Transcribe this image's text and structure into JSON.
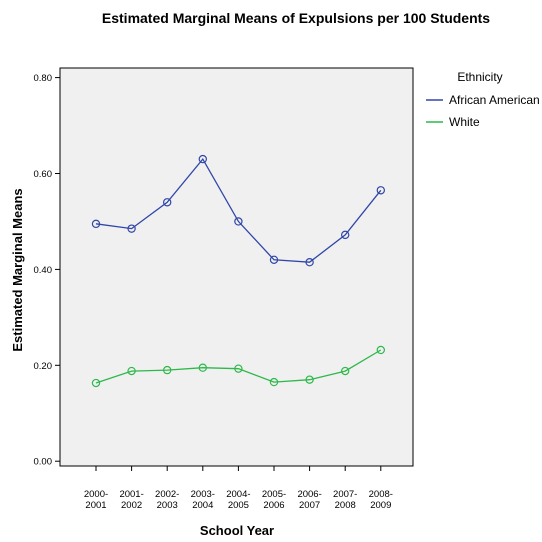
{
  "chart_data": {
    "type": "line",
    "title": "Estimated Marginal Means of Expulsions per 100 Students",
    "xlabel": "School Year",
    "ylabel": "Estimated Marginal Means",
    "categories": [
      [
        "2000-",
        "2001"
      ],
      [
        "2001-",
        "2002"
      ],
      [
        "2002-",
        "2003"
      ],
      [
        "2003-",
        "2004"
      ],
      [
        "2004-",
        "2005"
      ],
      [
        "2005-",
        "2006"
      ],
      [
        "2006-",
        "2007"
      ],
      [
        "2007-",
        "2008"
      ],
      [
        "2008-",
        "2009"
      ]
    ],
    "ylim": [
      -0.01,
      0.82
    ],
    "yticks": [
      {
        "value": 0.0,
        "label": "0.00"
      },
      {
        "value": 0.2,
        "label": "0.20"
      },
      {
        "value": 0.4,
        "label": "0.40"
      },
      {
        "value": 0.6,
        "label": "0.60"
      },
      {
        "value": 0.8,
        "label": "0.80"
      }
    ],
    "grid": false,
    "legend": {
      "title": "Ethnicity",
      "position": "right"
    },
    "series": [
      {
        "name": "African American",
        "color": "#3046a8",
        "values": [
          0.495,
          0.485,
          0.54,
          0.63,
          0.5,
          0.42,
          0.415,
          0.472,
          0.565
        ]
      },
      {
        "name": "White",
        "color": "#2db84a",
        "values": [
          0.163,
          0.188,
          0.19,
          0.195,
          0.193,
          0.165,
          0.17,
          0.188,
          0.232
        ]
      }
    ]
  }
}
